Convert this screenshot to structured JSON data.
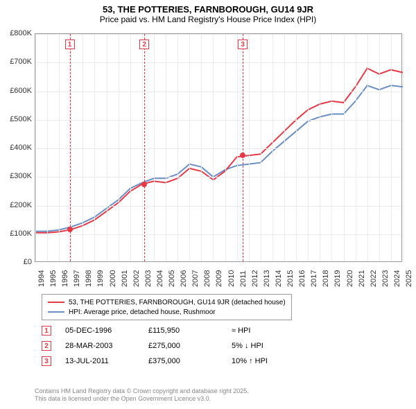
{
  "title": "53, THE POTTERIES, FARNBOROUGH, GU14 9JR",
  "subtitle": "Price paid vs. HM Land Registry's House Price Index (HPI)",
  "chart": {
    "type": "line",
    "background_color": "#ffffff",
    "grid_color": "#eaeaea",
    "border_color": "#999999",
    "x_years": [
      1994,
      1995,
      1996,
      1997,
      1998,
      1999,
      2000,
      2001,
      2002,
      2003,
      2004,
      2005,
      2006,
      2007,
      2008,
      2009,
      2010,
      2011,
      2012,
      2013,
      2014,
      2015,
      2016,
      2017,
      2018,
      2019,
      2020,
      2021,
      2022,
      2023,
      2024,
      2025
    ],
    "ylim": [
      0,
      800000
    ],
    "ytick_step": 100000,
    "ytick_labels": [
      "£0",
      "£100K",
      "£200K",
      "£300K",
      "£400K",
      "£500K",
      "£600K",
      "£700K",
      "£800K"
    ],
    "series": [
      {
        "name": "53, THE POTTERIES, FARNBOROUGH, GU14 9JR (detached house)",
        "color": "#e63946",
        "width": 2,
        "y": [
          105000,
          105000,
          108000,
          115950,
          130000,
          150000,
          180000,
          210000,
          250000,
          275000,
          285000,
          280000,
          295000,
          330000,
          320000,
          290000,
          320000,
          370000,
          375000,
          380000,
          420000,
          460000,
          500000,
          535000,
          555000,
          565000,
          560000,
          615000,
          680000,
          660000,
          675000,
          665000
        ]
      },
      {
        "name": "HPI: Average price, detached house, Rushmoor",
        "color": "#6a8fc5",
        "width": 2,
        "y": [
          110000,
          110000,
          115000,
          125000,
          140000,
          160000,
          190000,
          220000,
          260000,
          280000,
          295000,
          295000,
          310000,
          345000,
          335000,
          300000,
          325000,
          340000,
          345000,
          350000,
          390000,
          425000,
          460000,
          495000,
          510000,
          520000,
          520000,
          565000,
          620000,
          605000,
          620000,
          615000
        ]
      }
    ],
    "markers": [
      {
        "num": "1",
        "year": 1996.9,
        "y": 115950
      },
      {
        "num": "2",
        "year": 2003.2,
        "y": 275000
      },
      {
        "num": "3",
        "year": 2011.5,
        "y": 375000
      }
    ]
  },
  "legend": {
    "items": [
      {
        "color": "#e63946",
        "label": "53, THE POTTERIES, FARNBOROUGH, GU14 9JR (detached house)"
      },
      {
        "color": "#6a8fc5",
        "label": "HPI: Average price, detached house, Rushmoor"
      }
    ]
  },
  "sales": [
    {
      "num": "1",
      "date": "05-DEC-1996",
      "price": "£115,950",
      "hpi": "≈ HPI"
    },
    {
      "num": "2",
      "date": "28-MAR-2003",
      "price": "£275,000",
      "hpi": "5% ↓ HPI"
    },
    {
      "num": "3",
      "date": "13-JUL-2011",
      "price": "£375,000",
      "hpi": "10% ↑ HPI"
    }
  ],
  "footer": {
    "line1": "Contains HM Land Registry data © Crown copyright and database right 2025.",
    "line2": "This data is licensed under the Open Government Licence v3.0."
  }
}
